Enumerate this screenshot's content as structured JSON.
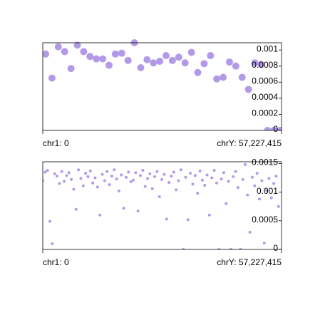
{
  "chart_data": [
    {
      "type": "scatter",
      "color": "#b39ae8",
      "marker_size": 5,
      "x": [
        37000000,
        119000000,
        201000000,
        283000000,
        365000000,
        447000000,
        529000000,
        611000000,
        693000000,
        775000000,
        857000000,
        939000000,
        1021000000,
        1103000000,
        1185000000,
        1267000000,
        1349000000,
        1431000000,
        1513000000,
        1595000000,
        1677000000,
        1759000000,
        1841000000,
        1923000000,
        2005000000,
        2087000000,
        2169000000,
        2251000000,
        2333000000,
        2415000000,
        2497000000,
        2579000000,
        2661000000,
        2743000000,
        2825000000,
        2907000000,
        2989000000,
        3071000000
      ],
      "values": [
        0.00095,
        0.00065,
        0.00104,
        0.00098,
        0.00077,
        0.00106,
        0.00098,
        0.00092,
        0.00089,
        0.00089,
        0.00081,
        0.00095,
        0.00096,
        0.00087,
        0.00109,
        0.00078,
        0.00088,
        0.00084,
        0.00086,
        0.00093,
        0.00087,
        0.00091,
        0.00084,
        0.00097,
        0.00072,
        0.00083,
        0.00093,
        0.00064,
        0.00066,
        0.00085,
        0.0008,
        0.00066,
        0.00051,
        0.00084,
        0.00082,
        0,
        0,
        0
      ],
      "xlim": [
        0,
        3088269832
      ],
      "xticks": [
        {
          "value": 0,
          "label": "chr1: 0"
        },
        {
          "value": 3088269832,
          "label": "chrY: 57,227,415"
        }
      ],
      "ylim": [
        0,
        0.00109
      ],
      "yticks": [
        0,
        0.0002,
        0.0004,
        0.0006,
        0.0008,
        0.001
      ]
    },
    {
      "type": "scatter",
      "color": "#b39ae8",
      "marker_size": 2,
      "x": [
        0,
        30800000,
        61600000,
        92400000,
        123200000,
        154000000,
        184800000,
        215600000,
        246400000,
        277200000,
        308000000,
        338800000,
        369600000,
        400400000,
        431200000,
        462000000,
        492800000,
        523600000,
        554400000,
        585200000,
        616000000,
        646800000,
        677600000,
        708400000,
        739200000,
        770000000,
        800800000,
        831600000,
        862400000,
        893200000,
        924000000,
        954800000,
        985600000,
        1016400000,
        1047200000,
        1078000000,
        1108800000,
        1139600000,
        1170400000,
        1201200000,
        1232000000,
        1262800000,
        1293600000,
        1324400000,
        1355200000,
        1386000000,
        1416800000,
        1447600000,
        1478400000,
        1509200000,
        1540000000,
        1570800000,
        1601600000,
        1632400000,
        1663200000,
        1694000000,
        1724800000,
        1755600000,
        1786400000,
        1817200000,
        1848000000,
        1878800000,
        1909600000,
        1940400000,
        1971200000,
        2002000000,
        2032800000,
        2063600000,
        2094400000,
        2125200000,
        2156000000,
        2186800000,
        2217600000,
        2248400000,
        2279200000,
        2310000000,
        2340800000,
        2371600000,
        2402400000,
        2433200000,
        2464000000,
        2494800000,
        2525600000,
        2556400000,
        2587200000,
        2618000000,
        2648800000,
        2679600000,
        2710400000,
        2741200000,
        2772000000,
        2802800000,
        2833600000,
        2864400000,
        2895200000,
        2926000000,
        2956800000,
        2987600000,
        3018400000,
        3049200000
      ],
      "values": [
        0.0012,
        0.00135,
        0.00138,
        0.00049,
        0.0001,
        0.00132,
        0.00128,
        0.00115,
        0.00136,
        0.00119,
        0.00129,
        0.00134,
        0.00122,
        0.00105,
        0.0007,
        0.00139,
        0.00124,
        0.00111,
        0.00133,
        0.00127,
        0.00137,
        0.00116,
        0.00125,
        0.00109,
        0.0006,
        0.00131,
        0.0012,
        0.00136,
        0.00113,
        0.00128,
        0.00139,
        0.00123,
        0.00102,
        0.0013,
        0.00072,
        0.00126,
        0.00135,
        0.00118,
        0.00121,
        0.00134,
        0.00067,
        0.00129,
        0.00138,
        0.0011,
        0.00124,
        0.00132,
        0.00106,
        0.00127,
        0.00136,
        0.00092,
        0.00122,
        0.00131,
        0.00053,
        0.00117,
        0.00128,
        0.00135,
        0.00104,
        0.0012,
        0.00139,
        0,
        0.00126,
        0.00052,
        0.00133,
        0.00114,
        0.00129,
        0.00098,
        0.00137,
        0.00121,
        0.00112,
        0.0013,
        0.0006,
        0.00125,
        0.00138,
        0.00116,
        0,
        0.00123,
        0.00134,
        0.0008,
        0.00119,
        0,
        0.00127,
        0.00136,
        0.00108,
        0,
        0.00122,
        0.00148,
        0.00095,
        0.0003,
        0.00126,
        0.00111,
        0.00133,
        0.00088,
        0.0012,
        0.00011,
        0.00103,
        0.00124,
        0.0009,
        0.00115,
        0.00128,
        0.00075
      ],
      "xlim": [
        0,
        3088269832
      ],
      "xticks": [
        {
          "value": 0,
          "label": "chr1: 0"
        },
        {
          "value": 3088269832,
          "label": "chrY: 57,227,415"
        }
      ],
      "ylim": [
        0,
        0.00153
      ],
      "yticks": [
        0,
        0.0005,
        0.001,
        0.0015
      ]
    }
  ]
}
